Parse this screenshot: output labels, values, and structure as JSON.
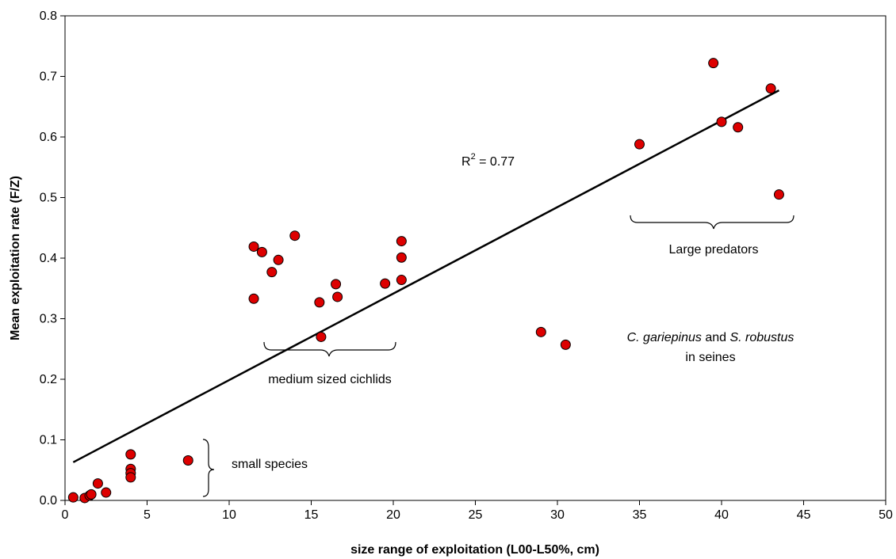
{
  "chart_data": {
    "type": "scatter",
    "xlabel": "size range of exploitation (L00-L50%, cm)",
    "ylabel": "Mean exploitation rate (F/Z)",
    "xlim": [
      0,
      50
    ],
    "ylim": [
      0,
      0.8
    ],
    "x_ticks": [
      "0",
      "5",
      "10",
      "15",
      "20",
      "25",
      "30",
      "35",
      "40",
      "45",
      "50"
    ],
    "y_ticks": [
      "0.0",
      "0.1",
      "0.2",
      "0.3",
      "0.4",
      "0.5",
      "0.6",
      "0.7",
      "0.8"
    ],
    "x_tick_values": [
      0,
      5,
      10,
      15,
      20,
      25,
      30,
      35,
      40,
      45,
      50
    ],
    "y_tick_values": [
      0,
      0.1,
      0.2,
      0.3,
      0.4,
      0.5,
      0.6,
      0.7,
      0.8
    ],
    "grid": false,
    "point_color": "#dd0000",
    "series": [
      {
        "points": [
          [
            0.5,
            0.005
          ],
          [
            1.2,
            0.004
          ],
          [
            1.5,
            0.008
          ],
          [
            1.6,
            0.01
          ],
          [
            2.0,
            0.028
          ],
          [
            2.5,
            0.013
          ],
          [
            4.0,
            0.076
          ],
          [
            4.0,
            0.052
          ],
          [
            4.0,
            0.045
          ],
          [
            4.0,
            0.038
          ],
          [
            7.5,
            0.066
          ],
          [
            11.5,
            0.419
          ],
          [
            11.5,
            0.333
          ],
          [
            12.0,
            0.41
          ],
          [
            12.6,
            0.377
          ],
          [
            13.0,
            0.397
          ],
          [
            14.0,
            0.437
          ],
          [
            15.5,
            0.327
          ],
          [
            15.6,
            0.27
          ],
          [
            16.5,
            0.357
          ],
          [
            16.6,
            0.336
          ],
          [
            19.5,
            0.358
          ],
          [
            20.5,
            0.428
          ],
          [
            20.5,
            0.401
          ],
          [
            20.5,
            0.364
          ],
          [
            29.0,
            0.278
          ],
          [
            30.5,
            0.257
          ],
          [
            35.0,
            0.588
          ],
          [
            39.5,
            0.722
          ],
          [
            40.0,
            0.625
          ],
          [
            41.0,
            0.616
          ],
          [
            43.0,
            0.68
          ],
          [
            43.5,
            0.505
          ]
        ]
      }
    ],
    "trendline": {
      "x": [
        0.5,
        43.5
      ],
      "y": [
        0.063,
        0.677
      ]
    },
    "r2_label": {
      "prefix": "R",
      "sup": "2",
      "suffix": " = 0.77"
    },
    "annotations": {
      "small_species": "small species",
      "medium_cichlids": "medium sized cichlids",
      "large_predators": "Large predators",
      "seines_species_1": "C. gariepinus",
      "seines_and": " and ",
      "seines_species_2": "S. robustus",
      "seines_line2": "in seines"
    }
  }
}
